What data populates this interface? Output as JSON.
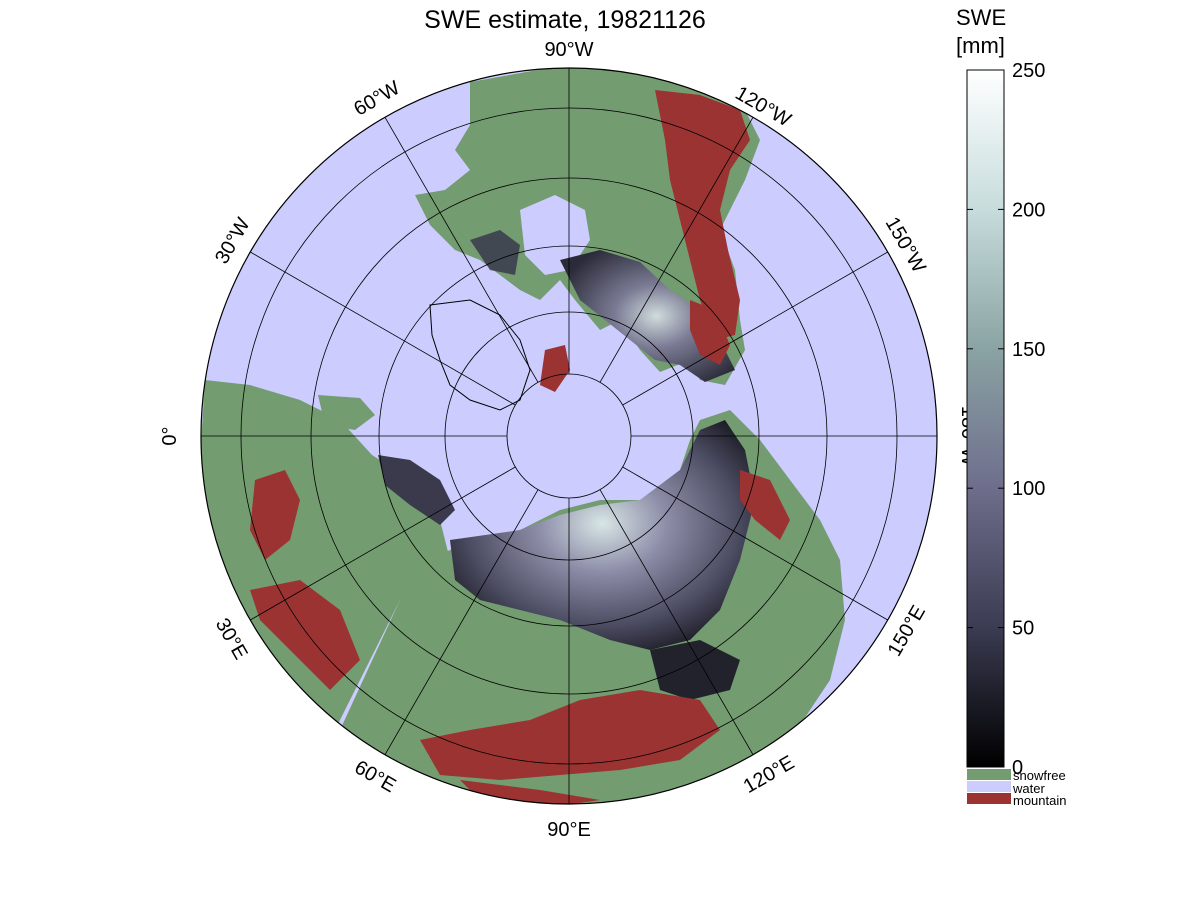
{
  "figure": {
    "title": "SWE estimate, 19821126",
    "colorbar": {
      "title_line1": "SWE",
      "title_line2": "[mm]",
      "ticks": [
        "0",
        "50",
        "100",
        "150",
        "200",
        "250"
      ],
      "range": [
        0,
        250
      ],
      "gradient": [
        "#000000",
        "#3b3b52",
        "#6e6e8c",
        "#8aa3a3",
        "#c7dcdc",
        "#ffffff"
      ],
      "legend": [
        {
          "label": "snowfree",
          "color": "#739c70"
        },
        {
          "label": "water",
          "color": "#ccccff"
        },
        {
          "label": "mountain",
          "color": "#9c3333"
        }
      ]
    },
    "map": {
      "projection": "polar stereographic, north pole",
      "ocean_color": "#ccccff",
      "longitude_labels": [
        {
          "name": "lon-90w",
          "text": "90°W"
        },
        {
          "name": "lon-120w",
          "text": "120°W"
        },
        {
          "name": "lon-150w",
          "text": "150°W"
        },
        {
          "name": "lon-180w",
          "text": "180°W"
        },
        {
          "name": "lon-150e",
          "text": "150°E"
        },
        {
          "name": "lon-120e",
          "text": "120°E"
        },
        {
          "name": "lon-90e",
          "text": "90°E"
        },
        {
          "name": "lon-60e",
          "text": "60°E"
        },
        {
          "name": "lon-30e",
          "text": "30°E"
        },
        {
          "name": "lon-0",
          "text": "0°"
        },
        {
          "name": "lon-30w",
          "text": "30°W"
        },
        {
          "name": "lon-60w",
          "text": "60°W"
        }
      ]
    }
  }
}
